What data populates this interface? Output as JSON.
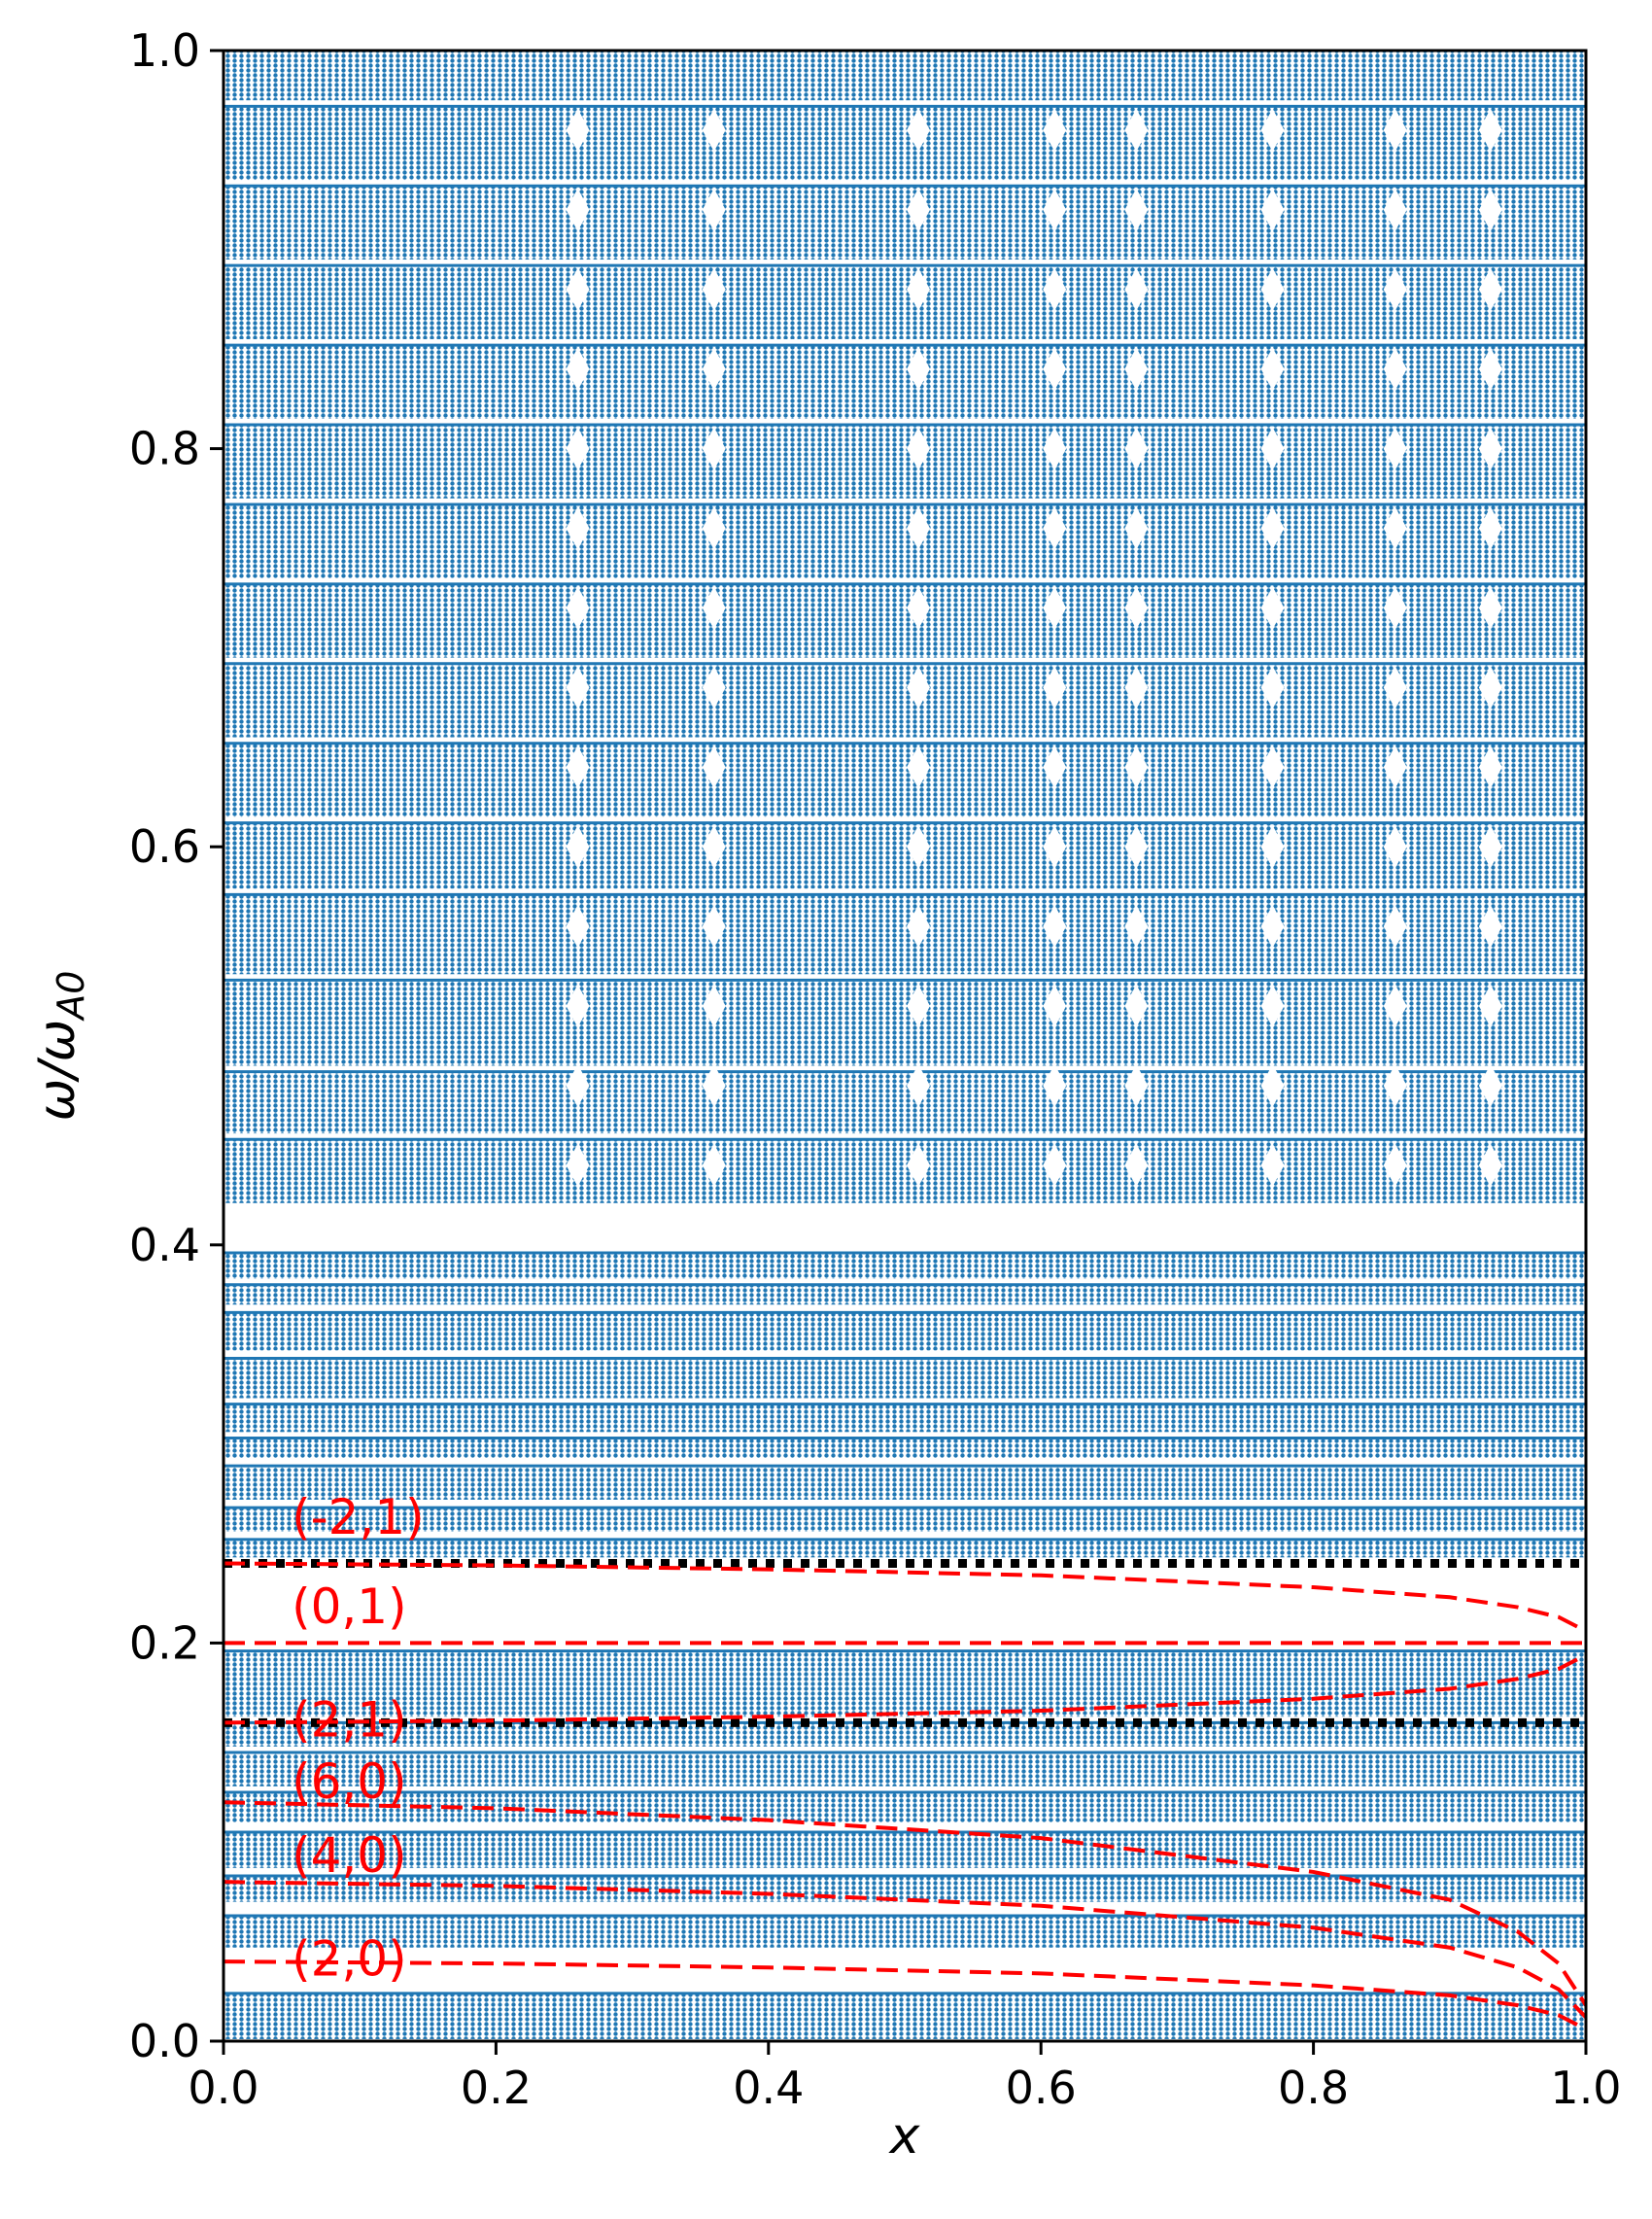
{
  "chart_data": {
    "type": "scatter",
    "title": "",
    "xlabel": "x",
    "ylabel_main": "ω/ω",
    "ylabel_sub": "A0",
    "xlim": [
      0.0,
      1.0
    ],
    "ylim": [
      0.0,
      1.0
    ],
    "xticks": [
      {
        "value": 0.0,
        "label": "0.0"
      },
      {
        "value": 0.2,
        "label": "0.2"
      },
      {
        "value": 0.4,
        "label": "0.4"
      },
      {
        "value": 0.6,
        "label": "0.6"
      },
      {
        "value": 0.8,
        "label": "0.8"
      },
      {
        "value": 1.0,
        "label": "1.0"
      }
    ],
    "yticks": [
      {
        "value": 0.0,
        "label": "0.0"
      },
      {
        "value": 0.2,
        "label": "0.2"
      },
      {
        "value": 0.4,
        "label": "0.4"
      },
      {
        "value": 0.6,
        "label": "0.6"
      },
      {
        "value": 0.8,
        "label": "0.8"
      },
      {
        "value": 1.0,
        "label": "1.0"
      }
    ],
    "grid": false,
    "colors": {
      "points": "#1f77b4",
      "dashed_curves": "#ff0000",
      "dotted_lines": "#000000"
    },
    "continuum_bands": [
      {
        "ymin": 0.001,
        "ymax": 0.024
      },
      {
        "ymin": 0.047,
        "ymax": 0.063
      },
      {
        "ymin": 0.07,
        "ymax": 0.083
      },
      {
        "ymin": 0.087,
        "ymax": 0.105
      },
      {
        "ymin": 0.11,
        "ymax": 0.125
      },
      {
        "ymin": 0.128,
        "ymax": 0.145
      },
      {
        "ymin": 0.148,
        "ymax": 0.16
      },
      {
        "ymin": 0.163,
        "ymax": 0.196
      },
      {
        "ymin": 0.243,
        "ymax": 0.252
      },
      {
        "ymin": 0.256,
        "ymax": 0.268
      },
      {
        "ymin": 0.272,
        "ymax": 0.289
      },
      {
        "ymin": 0.293,
        "ymax": 0.303
      },
      {
        "ymin": 0.306,
        "ymax": 0.32
      },
      {
        "ymin": 0.323,
        "ymax": 0.343
      },
      {
        "ymin": 0.347,
        "ymax": 0.366
      },
      {
        "ymin": 0.37,
        "ymax": 0.38
      },
      {
        "ymin": 0.383,
        "ymax": 0.396
      },
      {
        "ymin": 0.421,
        "ymax": 0.453
      },
      {
        "ymin": 0.456,
        "ymax": 0.487
      },
      {
        "ymin": 0.49,
        "ymax": 0.533
      },
      {
        "ymin": 0.536,
        "ymax": 0.576
      },
      {
        "ymin": 0.579,
        "ymax": 0.612
      },
      {
        "ymin": 0.615,
        "ymax": 0.652
      },
      {
        "ymin": 0.655,
        "ymax": 0.692
      },
      {
        "ymin": 0.695,
        "ymax": 0.732
      },
      {
        "ymin": 0.735,
        "ymax": 0.772
      },
      {
        "ymin": 0.775,
        "ymax": 0.812
      },
      {
        "ymin": 0.815,
        "ymax": 0.852
      },
      {
        "ymin": 0.855,
        "ymax": 0.892
      },
      {
        "ymin": 0.895,
        "ymax": 0.932
      },
      {
        "ymin": 0.935,
        "ymax": 0.972
      },
      {
        "ymin": 0.975,
        "ymax": 1.0
      }
    ],
    "dashed_curves": [
      {
        "label": "(2,0)",
        "x": [
          0.0,
          0.2,
          0.4,
          0.6,
          0.8,
          0.9,
          0.95,
          0.98,
          1.0
        ],
        "y": [
          0.04,
          0.039,
          0.037,
          0.034,
          0.028,
          0.023,
          0.018,
          0.013,
          0.006
        ]
      },
      {
        "label": "(4,0)",
        "x": [
          0.0,
          0.2,
          0.4,
          0.6,
          0.8,
          0.9,
          0.95,
          0.98,
          1.0
        ],
        "y": [
          0.08,
          0.078,
          0.074,
          0.068,
          0.057,
          0.047,
          0.037,
          0.026,
          0.012
        ]
      },
      {
        "label": "(6,0)",
        "x": [
          0.0,
          0.2,
          0.4,
          0.6,
          0.8,
          0.9,
          0.95,
          0.98,
          1.0
        ],
        "y": [
          0.12,
          0.117,
          0.111,
          0.102,
          0.085,
          0.071,
          0.055,
          0.039,
          0.018
        ]
      },
      {
        "label": "(2,1)",
        "x": [
          0.0,
          0.2,
          0.4,
          0.6,
          0.8,
          0.9,
          0.95,
          0.98,
          1.0
        ],
        "y": [
          0.16,
          0.161,
          0.163,
          0.166,
          0.172,
          0.177,
          0.182,
          0.187,
          0.194
        ]
      },
      {
        "label": "(0,1)",
        "x": [
          0.0,
          0.2,
          0.4,
          0.6,
          0.8,
          0.9,
          0.95,
          0.98,
          1.0
        ],
        "y": [
          0.2,
          0.2,
          0.2,
          0.2,
          0.2,
          0.2,
          0.2,
          0.2,
          0.2
        ]
      },
      {
        "label": "(-2,1)",
        "x": [
          0.0,
          0.2,
          0.4,
          0.6,
          0.8,
          0.9,
          0.95,
          0.98,
          1.0
        ],
        "y": [
          0.24,
          0.239,
          0.237,
          0.234,
          0.228,
          0.223,
          0.218,
          0.213,
          0.206
        ]
      }
    ],
    "dotted_lines": [
      {
        "y": 0.16,
        "xmin": 0.0,
        "xmax": 1.0
      },
      {
        "y": 0.24,
        "xmin": 0.0,
        "xmax": 1.0
      }
    ],
    "curve_labels": [
      {
        "text": "(-2,1)",
        "x": 0.05,
        "y": 0.255
      },
      {
        "text": "(0,1)",
        "x": 0.05,
        "y": 0.21
      },
      {
        "text": "(2,1)",
        "x": 0.05,
        "y": 0.153
      },
      {
        "text": "(6,0)",
        "x": 0.05,
        "y": 0.122
      },
      {
        "text": "(4,0)",
        "x": 0.05,
        "y": 0.085
      },
      {
        "text": "(2,0)",
        "x": 0.05,
        "y": 0.033
      }
    ]
  }
}
